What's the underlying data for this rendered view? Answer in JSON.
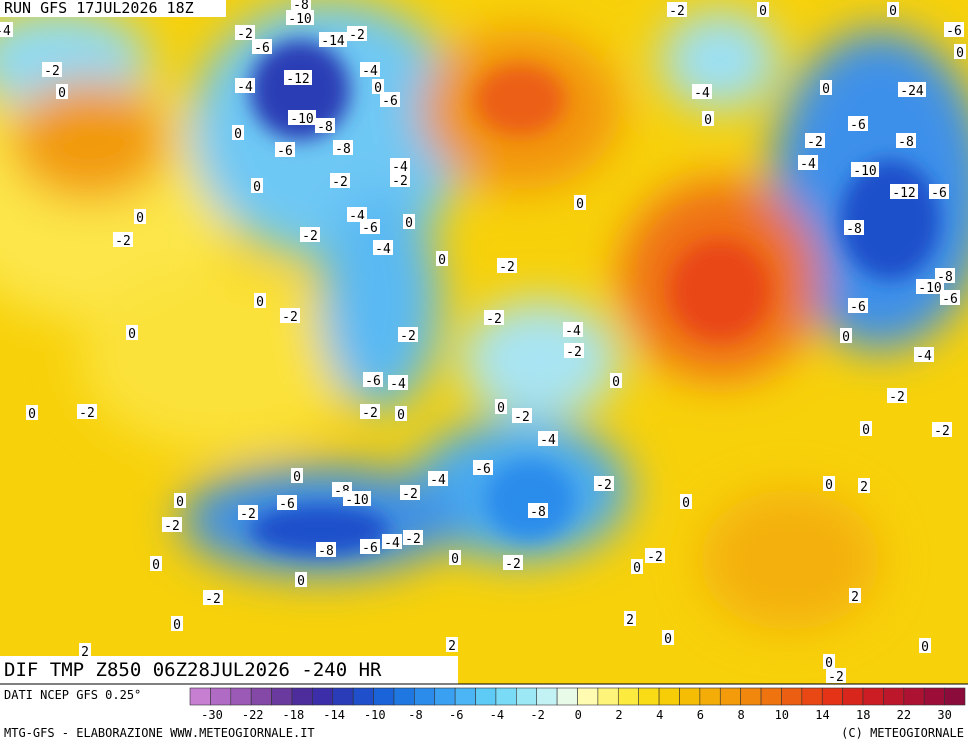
{
  "header": {
    "run": "RUN GFS 17JUL2026 18Z"
  },
  "field_title": "DIF TMP Z850 06Z28JUL2026 -240 HR",
  "footer": {
    "source": "DATI NCEP GFS 0.25°",
    "credits": "MTG-GFS - ELABORAZIONE WWW.METEOGIORNALE.IT",
    "copyright": "(C) METEOGIORNALE"
  },
  "colorbar": {
    "ticks": [
      -30,
      -22,
      -18,
      -14,
      -10,
      -8,
      -6,
      -4,
      -2,
      0,
      2,
      4,
      6,
      8,
      10,
      14,
      18,
      22,
      30
    ],
    "colors": [
      "#c77fd1",
      "#b06cc4",
      "#9a5ab6",
      "#8448a7",
      "#6b3a9e",
      "#4d2c9c",
      "#3b2ea8",
      "#2b3cb8",
      "#1f4fca",
      "#1a63d8",
      "#1f78e2",
      "#2b8ceb",
      "#3aa0f2",
      "#4cb5f5",
      "#5ecaf6",
      "#7adbf6",
      "#9ce8f5",
      "#c3f2f5",
      "#e8fae8",
      "#fffbb0",
      "#fff47a",
      "#fdea3f",
      "#f9dc15",
      "#f6cd06",
      "#f5be05",
      "#f4ad08",
      "#f39b0a",
      "#f1880d",
      "#ef7410",
      "#ec5e12",
      "#e94714",
      "#e43317",
      "#d9261c",
      "#cc1d24",
      "#bd172c",
      "#ad1233",
      "#9c0e38",
      "#8b0b3a"
    ]
  },
  "labels": [
    -8,
    -10,
    -2,
    -6,
    -14,
    -2,
    -2,
    0,
    -4,
    -12,
    -4,
    0,
    -6,
    -10,
    -8,
    0,
    -6,
    -8,
    -4,
    -2,
    -2,
    0,
    0,
    -2,
    -4,
    -6,
    0,
    -2,
    -4,
    0,
    -2,
    0,
    -2,
    0,
    -2,
    -4,
    -2,
    -2,
    -6,
    -4,
    0,
    0,
    -2,
    -2,
    0,
    0,
    -2,
    -4,
    0,
    -6,
    -4,
    -8,
    -10,
    -2,
    -6,
    0,
    -2,
    -2,
    -8,
    -2,
    0,
    -8,
    -6,
    -4,
    -2,
    0,
    0,
    -2,
    -2,
    0,
    0,
    -2,
    0,
    2,
    0,
    2,
    2,
    2,
    0,
    0,
    -2,
    0,
    2,
    0,
    -2,
    -2,
    -4,
    0,
    -6,
    -8,
    -10,
    -6,
    -8,
    -12,
    -6,
    -10,
    -4,
    -2,
    -6,
    -8,
    -24,
    -4,
    0,
    0,
    -2,
    0,
    0,
    -6,
    0,
    0,
    -4
  ]
}
